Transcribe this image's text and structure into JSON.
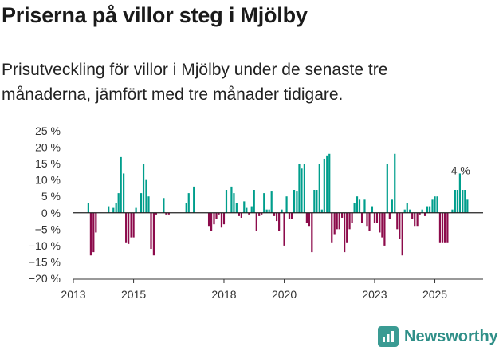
{
  "title": "Priserna på villor steg i Mjölby",
  "subtitle": "Prisutveckling för villor i Mjölby under de senaste tre månaderna, jämfört med tre månader tidigare.",
  "brand": "Newsworthy",
  "colors": {
    "positive": "#009e8c",
    "negative": "#8c0b4b",
    "axis": "#333333",
    "brand": "#2f8f88"
  },
  "chart_data": {
    "type": "bar",
    "title": "Priserna på villor steg i Mjölby",
    "xlabel": "",
    "ylabel": "",
    "ylim": [
      -20,
      25
    ],
    "xlim": [
      2013.0,
      2026.6
    ],
    "yticks": [
      25,
      20,
      15,
      10,
      5,
      0,
      -5,
      -10,
      -15,
      -20
    ],
    "ytick_labels": [
      "25 %",
      "20 %",
      "15 %",
      "10 %",
      "5 %",
      "0 %",
      "−5 %",
      "−10 %",
      "−15 %",
      "−20 %"
    ],
    "xticks": [
      2013,
      2015,
      2018,
      2020,
      2023,
      2025
    ],
    "xtick_labels": [
      "2013",
      "2015",
      "2018",
      "2020",
      "2023",
      "2025"
    ],
    "annotation": {
      "text": "4 %",
      "x": 2025.96,
      "y": 4
    },
    "series": [
      {
        "name": "Prisutveckling",
        "x": [
          2013.5,
          2013.58,
          2013.67,
          2013.75,
          2014.17,
          2014.33,
          2014.42,
          2014.5,
          2014.58,
          2014.67,
          2014.75,
          2014.83,
          2014.92,
          2015.0,
          2015.08,
          2015.25,
          2015.33,
          2015.42,
          2015.5,
          2015.58,
          2015.67,
          2015.75,
          2015.83,
          2015.92,
          2016.0,
          2016.08,
          2016.17,
          2016.25,
          2016.33,
          2016.42,
          2016.5,
          2016.58,
          2016.67,
          2016.75,
          2016.83,
          2017.0,
          2017.5,
          2017.58,
          2017.67,
          2017.75,
          2017.83,
          2017.92,
          2018.0,
          2018.08,
          2018.25,
          2018.33,
          2018.42,
          2018.5,
          2018.58,
          2018.67,
          2018.75,
          2018.83,
          2018.92,
          2019.0,
          2019.08,
          2019.17,
          2019.25,
          2019.33,
          2019.42,
          2019.5,
          2019.58,
          2019.67,
          2019.75,
          2019.83,
          2019.92,
          2020.0,
          2020.08,
          2020.17,
          2020.25,
          2020.33,
          2020.42,
          2020.5,
          2020.58,
          2020.67,
          2020.75,
          2020.83,
          2020.92,
          2021.0,
          2021.08,
          2021.17,
          2021.25,
          2021.33,
          2021.42,
          2021.5,
          2021.58,
          2021.67,
          2021.75,
          2021.83,
          2021.92,
          2022.0,
          2022.08,
          2022.17,
          2022.25,
          2022.33,
          2022.42,
          2022.5,
          2022.58,
          2022.67,
          2022.75,
          2022.83,
          2022.92,
          2023.0,
          2023.08,
          2023.17,
          2023.25,
          2023.33,
          2023.42,
          2023.5,
          2023.58,
          2023.67,
          2023.75,
          2023.83,
          2023.92,
          2024.0,
          2024.08,
          2024.17,
          2024.25,
          2024.33,
          2024.42,
          2024.5,
          2024.58,
          2024.67,
          2024.75,
          2024.83,
          2024.92,
          2025.0,
          2025.08,
          2025.17,
          2025.25,
          2025.33,
          2025.42,
          2025.5,
          2025.58,
          2025.67,
          2025.75,
          2025.83,
          2025.92,
          2026.0,
          2026.08
        ],
        "values": [
          3,
          -13,
          -12,
          -6,
          2,
          1.5,
          3,
          6,
          17,
          12,
          -9,
          -9.5,
          -7.5,
          -7.5,
          1.5,
          6,
          15,
          10,
          5,
          -11,
          -13,
          -0.5,
          0,
          0,
          4.5,
          -0.5,
          -0.5,
          0,
          0,
          0,
          0,
          0,
          0,
          3,
          6,
          8,
          -4,
          -5.5,
          -3.5,
          -2,
          -0.5,
          -4.5,
          -3.5,
          7,
          8,
          6,
          3,
          -1,
          -1.5,
          3.5,
          1.5,
          -0.5,
          2,
          7,
          -5.5,
          -1,
          -0.5,
          6,
          1,
          1,
          6.5,
          -1,
          -2.5,
          -5.5,
          1,
          -10,
          5,
          -2,
          -2,
          7,
          6.5,
          15,
          13.5,
          15,
          -3,
          -4,
          -12,
          7,
          7,
          15,
          1,
          16.5,
          17.5,
          18,
          -9,
          -6.5,
          -5,
          -5,
          -1.5,
          -12,
          -9,
          -5,
          -3,
          3,
          5,
          4,
          -3,
          4,
          -4,
          -5.5,
          2,
          -3,
          -3,
          -6,
          -7.5,
          -10,
          15,
          -2,
          4,
          18,
          -5,
          -8,
          -13,
          1,
          3,
          1,
          -2,
          -4,
          -4,
          -0.5,
          1,
          -1,
          2,
          2,
          4,
          5,
          5,
          -9,
          -9,
          -9,
          -9,
          0,
          1,
          7,
          7,
          12,
          7,
          7,
          4
        ]
      }
    ]
  }
}
